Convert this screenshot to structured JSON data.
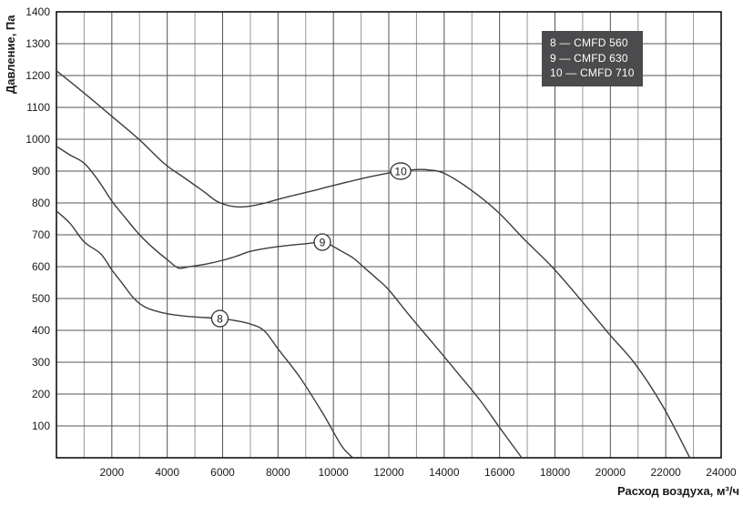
{
  "colors": {
    "curve": "#3d3d3d",
    "grid_minor": "#989898",
    "grid_major": "#545454",
    "axis_border": "#111111",
    "legend_bg": "#4b4b4d",
    "legend_text": "#ffffff",
    "marker_fill": "#ffffff"
  },
  "chart_data": {
    "type": "line",
    "title": "",
    "xlabel": "Расход воздуха, м³/ч",
    "ylabel": "Давление, Па",
    "xlim": [
      0,
      24000
    ],
    "ylim": [
      0,
      1400
    ],
    "x_grid_step": 1000,
    "x_label_step": 2000,
    "y_grid_step": 100,
    "y_label_step": 100,
    "grid": "on",
    "legend_position": "top-right",
    "series": [
      {
        "name": "CMFD 560",
        "marker": "8",
        "legend": "8 — CMFD 560",
        "marker_at": [
          5900,
          437
        ],
        "points": [
          [
            0,
            775
          ],
          [
            500,
            735
          ],
          [
            1000,
            678
          ],
          [
            1600,
            640
          ],
          [
            2000,
            590
          ],
          [
            2400,
            545
          ],
          [
            2800,
            500
          ],
          [
            3200,
            473
          ],
          [
            3700,
            458
          ],
          [
            4300,
            448
          ],
          [
            5000,
            442
          ],
          [
            5900,
            437
          ],
          [
            6500,
            430
          ],
          [
            7000,
            420
          ],
          [
            7500,
            399
          ],
          [
            8000,
            342
          ],
          [
            8800,
            251
          ],
          [
            9600,
            142
          ],
          [
            10300,
            37
          ],
          [
            10700,
            0
          ]
        ]
      },
      {
        "name": "CMFD 630",
        "marker": "9",
        "legend": "9 — CMFD 630",
        "marker_at": [
          9600,
          677
        ],
        "points": [
          [
            0,
            978
          ],
          [
            500,
            950
          ],
          [
            1000,
            925
          ],
          [
            1500,
            872
          ],
          [
            2000,
            806
          ],
          [
            2500,
            752
          ],
          [
            3000,
            700
          ],
          [
            3500,
            658
          ],
          [
            4000,
            622
          ],
          [
            4400,
            596
          ],
          [
            4800,
            600
          ],
          [
            5400,
            608
          ],
          [
            6000,
            620
          ],
          [
            6500,
            633
          ],
          [
            7000,
            648
          ],
          [
            7600,
            658
          ],
          [
            8200,
            665
          ],
          [
            9000,
            672
          ],
          [
            9600,
            677
          ],
          [
            9900,
            668
          ],
          [
            10300,
            648
          ],
          [
            10700,
            628
          ],
          [
            11100,
            598
          ],
          [
            11600,
            560
          ],
          [
            12000,
            527
          ],
          [
            12800,
            441
          ],
          [
            13600,
            359
          ],
          [
            14500,
            265
          ],
          [
            15300,
            180
          ],
          [
            16000,
            95
          ],
          [
            16800,
            0
          ]
        ]
      },
      {
        "name": "CMFD 710",
        "marker": "10",
        "legend": "10 — CMFD 710",
        "marker_at": [
          12430,
          900
        ],
        "points": [
          [
            0,
            1215
          ],
          [
            1000,
            1145
          ],
          [
            2000,
            1072
          ],
          [
            3000,
            998
          ],
          [
            3900,
            923
          ],
          [
            4600,
            880
          ],
          [
            5300,
            837
          ],
          [
            5800,
            805
          ],
          [
            6300,
            790
          ],
          [
            6800,
            788
          ],
          [
            7400,
            797
          ],
          [
            8200,
            816
          ],
          [
            9200,
            837
          ],
          [
            10000,
            855
          ],
          [
            11000,
            876
          ],
          [
            12000,
            894
          ],
          [
            12430,
            900
          ],
          [
            13000,
            905
          ],
          [
            13500,
            903
          ],
          [
            14000,
            893
          ],
          [
            14900,
            845
          ],
          [
            15900,
            775
          ],
          [
            16900,
            685
          ],
          [
            17900,
            599
          ],
          [
            18900,
            499
          ],
          [
            19900,
            394
          ],
          [
            20900,
            294
          ],
          [
            21900,
            161
          ],
          [
            22870,
            0
          ]
        ]
      }
    ]
  }
}
